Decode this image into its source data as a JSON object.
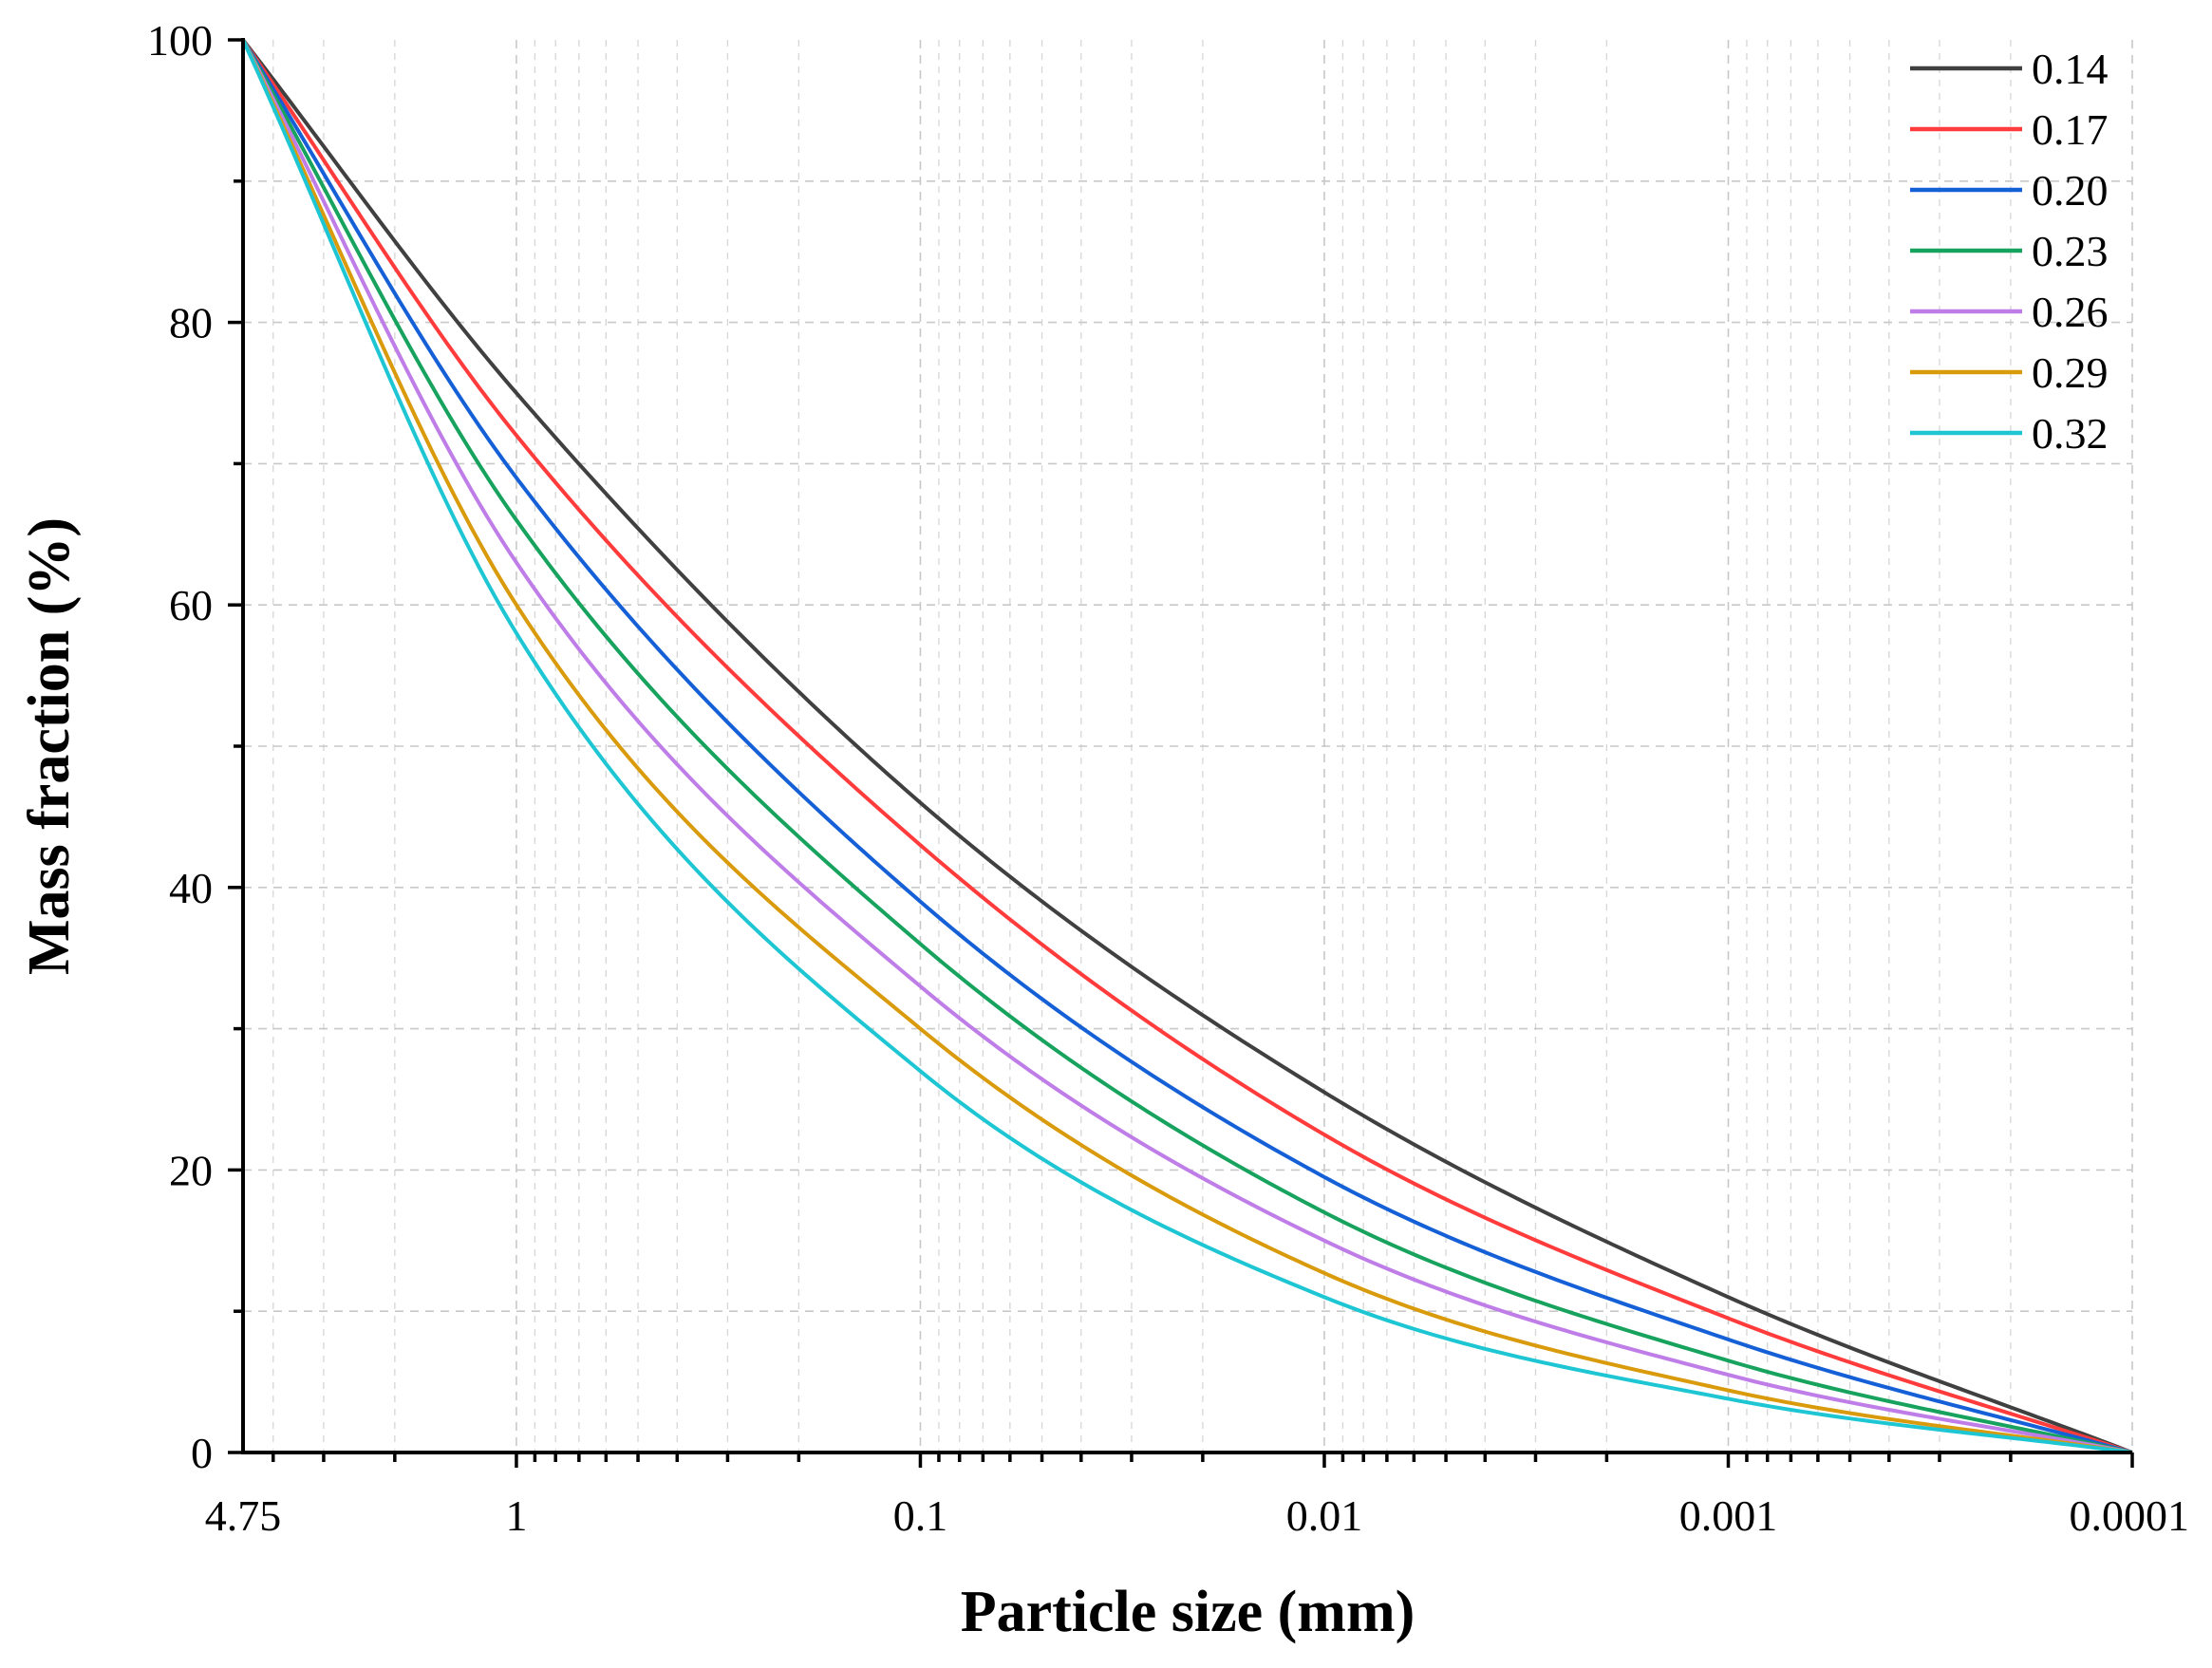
{
  "chart_data": {
    "type": "line",
    "title": "",
    "xlabel": "Particle size (mm)",
    "ylabel": "Mass fraction (%)",
    "x_scale": "log",
    "x_reversed": true,
    "xlim": [
      4.75,
      0.0001
    ],
    "ylim": [
      0,
      100
    ],
    "x_ticks": [
      {
        "value": 4.75,
        "label": "4.75"
      },
      {
        "value": 1,
        "label": "1"
      },
      {
        "value": 0.1,
        "label": "0.1"
      },
      {
        "value": 0.01,
        "label": "0.01"
      },
      {
        "value": 0.001,
        "label": "0.001"
      },
      {
        "value": 0.0001,
        "label": "0.0001"
      }
    ],
    "y_ticks": [
      {
        "value": 0,
        "label": "0"
      },
      {
        "value": 20,
        "label": "20"
      },
      {
        "value": 40,
        "label": "40"
      },
      {
        "value": 60,
        "label": "60"
      },
      {
        "value": 80,
        "label": "80"
      },
      {
        "value": 100,
        "label": "100"
      }
    ],
    "grid": true,
    "legend_position": "top-right",
    "x": [
      4.75,
      1,
      0.1,
      0.01,
      0.001,
      0.0001
    ],
    "series": [
      {
        "name": "0.14",
        "color": "#404040",
        "values": [
          100,
          75,
          46,
          25.5,
          11,
          0
        ]
      },
      {
        "name": "0.17",
        "color": "#ff3b3b",
        "values": [
          100,
          72,
          43,
          22.5,
          9.5,
          0
        ]
      },
      {
        "name": "0.20",
        "color": "#1560d6",
        "values": [
          100,
          69,
          39,
          19.5,
          8,
          0
        ]
      },
      {
        "name": "0.23",
        "color": "#17a35e",
        "values": [
          100,
          66,
          36,
          17,
          6.5,
          0
        ]
      },
      {
        "name": "0.26",
        "color": "#bf7de8",
        "values": [
          100,
          63,
          33,
          15,
          5.5,
          0
        ]
      },
      {
        "name": "0.29",
        "color": "#d99a0c",
        "values": [
          100,
          60,
          30,
          12.7,
          4.4,
          0
        ]
      },
      {
        "name": "0.32",
        "color": "#1ec6d4",
        "values": [
          100,
          58,
          27,
          11,
          3.8,
          0
        ]
      }
    ]
  }
}
